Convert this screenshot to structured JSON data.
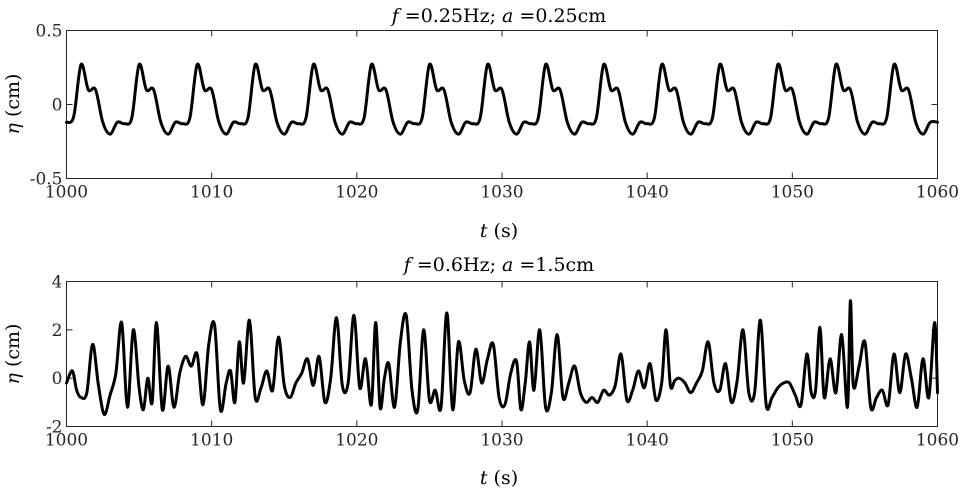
{
  "colors": {
    "line": "#000000",
    "axes": "#262626",
    "background": "#ffffff"
  },
  "chart_data": [
    {
      "type": "line",
      "title": "f =0.25Hz; a =0.25cm",
      "title_parts": {
        "f_sym": "f",
        "f_val": " =0.25Hz; ",
        "a_sym": "a",
        "a_val": " =0.25cm"
      },
      "xlabel": "t (s)",
      "xlabel_parts": {
        "sym": "t",
        "unit": " (s)"
      },
      "ylabel": "η (cm)",
      "ylabel_parts": {
        "sym": "η",
        "unit": " (cm)"
      },
      "xlim": [
        1000,
        1060
      ],
      "ylim": [
        -0.5,
        0.5
      ],
      "xticks": [
        1000,
        1010,
        1020,
        1030,
        1040,
        1050,
        1060
      ],
      "yticks": [
        -0.5,
        0,
        0.5
      ],
      "xtick_labels": [
        "1000",
        "1010",
        "1020",
        "1030",
        "1040",
        "1050",
        "1060"
      ],
      "ytick_labels": [
        "-0.5",
        "0",
        "0.5"
      ],
      "grid": false,
      "x": [
        1000,
        1000.5,
        1001,
        1001.5,
        1002,
        1002.5,
        1003,
        1003.5,
        1004,
        1004.5,
        1005,
        1005.5,
        1006,
        1006.5,
        1007,
        1007.5,
        1008,
        1008.5,
        1009,
        1009.5,
        1010,
        1010.5,
        1011,
        1011.5,
        1012,
        1012.5,
        1013,
        1013.5,
        1014,
        1014.5,
        1015,
        1015.5,
        1016,
        1016.5,
        1017,
        1017.5,
        1018,
        1018.5,
        1019,
        1019.5,
        1020,
        1020.5,
        1021,
        1021.5,
        1022,
        1022.5,
        1023,
        1023.5,
        1024,
        1024.5,
        1025,
        1025.5,
        1026,
        1026.5,
        1027,
        1027.5,
        1028,
        1028.5,
        1029,
        1029.5,
        1030,
        1030.5,
        1031,
        1031.5,
        1032,
        1032.5,
        1033,
        1033.5,
        1034,
        1034.5,
        1035,
        1035.5,
        1036,
        1036.5,
        1037,
        1037.5,
        1038,
        1038.5,
        1039,
        1039.5,
        1040,
        1040.5,
        1041,
        1041.5,
        1042,
        1042.5,
        1043,
        1043.5,
        1044,
        1044.5,
        1045,
        1045.5,
        1046,
        1046.5,
        1047,
        1047.5,
        1048,
        1048.5,
        1049,
        1049.5,
        1050,
        1050.5,
        1051,
        1051.5,
        1052,
        1052.5,
        1053,
        1053.5,
        1054,
        1054.5,
        1055,
        1055.5,
        1056,
        1056.5,
        1057,
        1057.5,
        1058,
        1058.5,
        1059,
        1059.5,
        1060
      ],
      "y": [
        -0.12,
        -0.08,
        0.27,
        0.1,
        0.1,
        -0.12,
        -0.2,
        -0.12,
        -0.13,
        -0.09,
        0.27,
        0.1,
        0.1,
        -0.12,
        -0.2,
        -0.12,
        -0.13,
        -0.09,
        0.27,
        0.1,
        0.1,
        -0.12,
        -0.2,
        -0.12,
        -0.13,
        -0.09,
        0.27,
        0.1,
        0.1,
        -0.12,
        -0.2,
        -0.12,
        -0.13,
        -0.09,
        0.27,
        0.1,
        0.1,
        -0.12,
        -0.2,
        -0.12,
        -0.13,
        -0.09,
        0.27,
        0.1,
        0.1,
        -0.12,
        -0.2,
        -0.12,
        -0.13,
        -0.09,
        0.27,
        0.1,
        0.1,
        -0.12,
        -0.2,
        -0.12,
        -0.13,
        -0.09,
        0.27,
        0.1,
        0.1,
        -0.12,
        -0.2,
        -0.12,
        -0.13,
        -0.09,
        0.27,
        0.1,
        0.1,
        -0.12,
        -0.2,
        -0.12,
        -0.13,
        -0.09,
        0.27,
        0.1,
        0.1,
        -0.12,
        -0.2,
        -0.12,
        -0.13,
        -0.09,
        0.27,
        0.1,
        0.1,
        -0.12,
        -0.2,
        -0.12,
        -0.13,
        -0.09,
        0.27,
        0.1,
        0.1,
        -0.12,
        -0.2,
        -0.12,
        -0.13,
        -0.09,
        0.27,
        0.1,
        0.1,
        -0.12,
        -0.2,
        -0.12,
        -0.13,
        -0.09,
        0.27,
        0.1,
        0.1,
        -0.12,
        -0.2,
        -0.12,
        -0.13,
        -0.09,
        0.27,
        0.1,
        0.1,
        -0.12,
        -0.2,
        -0.12,
        -0.12
      ]
    },
    {
      "type": "line",
      "title": "f =0.6Hz; a =1.5cm",
      "title_parts": {
        "f_sym": "f",
        "f_val": " =0.6Hz; ",
        "a_sym": "a",
        "a_val": " =1.5cm"
      },
      "xlabel": "t (s)",
      "xlabel_parts": {
        "sym": "t",
        "unit": " (s)"
      },
      "ylabel": "η (cm)",
      "ylabel_parts": {
        "sym": "η",
        "unit": " (cm)"
      },
      "xlim": [
        1000,
        1060
      ],
      "ylim": [
        -2,
        4
      ],
      "xticks": [
        1000,
        1010,
        1020,
        1030,
        1040,
        1050,
        1060
      ],
      "yticks": [
        -2,
        0,
        2,
        4
      ],
      "xtick_labels": [
        "1000",
        "1010",
        "1020",
        "1030",
        "1040",
        "1050",
        "1060"
      ],
      "ytick_labels": [
        "-2",
        "0",
        "2",
        "4"
      ],
      "grid": false,
      "x": [
        1000,
        1000.4,
        1000.7,
        1001,
        1001.4,
        1001.8,
        1002.2,
        1002.6,
        1003,
        1003.4,
        1003.8,
        1004.2,
        1004.6,
        1005,
        1005.3,
        1005.6,
        1005.9,
        1006.2,
        1006.6,
        1007,
        1007.4,
        1007.8,
        1008.2,
        1008.6,
        1009,
        1009.4,
        1009.8,
        1010.2,
        1010.6,
        1011,
        1011.3,
        1011.6,
        1011.9,
        1012.2,
        1012.6,
        1013,
        1013.4,
        1013.8,
        1014.2,
        1014.6,
        1015,
        1015.4,
        1015.8,
        1016.2,
        1016.6,
        1017,
        1017.4,
        1017.8,
        1018.2,
        1018.6,
        1019,
        1019.4,
        1019.8,
        1020.2,
        1020.6,
        1021,
        1021.3,
        1021.6,
        1021.9,
        1022.2,
        1022.6,
        1023,
        1023.4,
        1023.8,
        1024.2,
        1024.6,
        1025,
        1025.4,
        1025.8,
        1026.2,
        1026.6,
        1027,
        1027.4,
        1027.8,
        1028.2,
        1028.6,
        1029,
        1029.4,
        1029.8,
        1030.2,
        1030.6,
        1031,
        1031.3,
        1031.6,
        1031.9,
        1032.2,
        1032.6,
        1033,
        1033.4,
        1033.8,
        1034.2,
        1034.6,
        1035,
        1035.4,
        1035.8,
        1036.2,
        1036.6,
        1037,
        1037.4,
        1037.8,
        1038.2,
        1038.6,
        1039,
        1039.4,
        1039.8,
        1040.2,
        1040.6,
        1041,
        1041.3,
        1041.6,
        1041.9,
        1042.2,
        1042.6,
        1043,
        1043.4,
        1043.8,
        1044.2,
        1044.6,
        1045,
        1045.4,
        1045.8,
        1046.2,
        1046.6,
        1047,
        1047.4,
        1047.8,
        1048.2,
        1048.6,
        1049,
        1049.4,
        1049.8,
        1050.2,
        1050.6,
        1051,
        1051.3,
        1051.6,
        1051.9,
        1052.2,
        1052.6,
        1053,
        1053.4,
        1053.8,
        1054,
        1054.2,
        1054.6,
        1055,
        1055.4,
        1055.8,
        1056.2,
        1056.6,
        1057,
        1057.4,
        1057.8,
        1058.2,
        1058.6,
        1059,
        1059.4,
        1059.8,
        1060
      ],
      "y": [
        -0.2,
        0.3,
        -0.5,
        -0.8,
        -0.6,
        1.4,
        -0.3,
        -1.5,
        -0.7,
        0.2,
        2.3,
        -1.2,
        2.0,
        -0.4,
        -1.3,
        0.0,
        -1.0,
        2.3,
        -1.3,
        0.5,
        -1.2,
        0.2,
        0.9,
        0.5,
        1.0,
        -1.1,
        1.4,
        2.2,
        -1.3,
        -0.2,
        0.3,
        -1.0,
        1.5,
        -0.2,
        2.4,
        -0.8,
        -0.4,
        0.3,
        -0.5,
        1.7,
        -0.3,
        -0.8,
        -0.2,
        0.2,
        0.8,
        -0.3,
        0.9,
        -1.0,
        0.0,
        2.5,
        -0.3,
        -0.2,
        2.6,
        -0.4,
        0.8,
        -1.1,
        2.3,
        -1.2,
        0.0,
        0.6,
        -1.2,
        1.5,
        2.6,
        -0.5,
        -1.3,
        2.0,
        -0.9,
        -0.5,
        -1.2,
        2.7,
        -1.3,
        1.5,
        -0.1,
        -0.6,
        1.2,
        -0.2,
        0.8,
        1.4,
        -0.8,
        -1.1,
        0.2,
        0.7,
        -1.3,
        -0.2,
        1.5,
        -0.5,
        2.0,
        -1.2,
        -0.6,
        1.8,
        -0.8,
        -0.2,
        0.5,
        -0.6,
        -1.0,
        -0.8,
        -1.0,
        -0.5,
        -0.7,
        -0.3,
        1.0,
        -0.9,
        -0.5,
        0.3,
        -0.4,
        0.6,
        -0.9,
        -0.2,
        2.0,
        -0.3,
        -0.1,
        0.0,
        -0.2,
        -0.6,
        -0.2,
        0.3,
        1.5,
        -0.2,
        -0.5,
        0.6,
        -1.0,
        -0.1,
        2.0,
        -0.6,
        -0.6,
        2.4,
        -1.1,
        -0.8,
        -0.4,
        -0.2,
        -0.2,
        -0.7,
        -1.1,
        1.0,
        -0.6,
        -0.5,
        2.1,
        -0.8,
        0.8,
        -0.6,
        1.8,
        -1.2,
        3.2,
        -0.3,
        0.5,
        1.5,
        -1.2,
        -0.8,
        -0.5,
        -1.1,
        1.0,
        -0.6,
        1.0,
        0.0,
        -1.2,
        0.8,
        -0.8,
        2.3,
        -0.6
      ]
    }
  ]
}
